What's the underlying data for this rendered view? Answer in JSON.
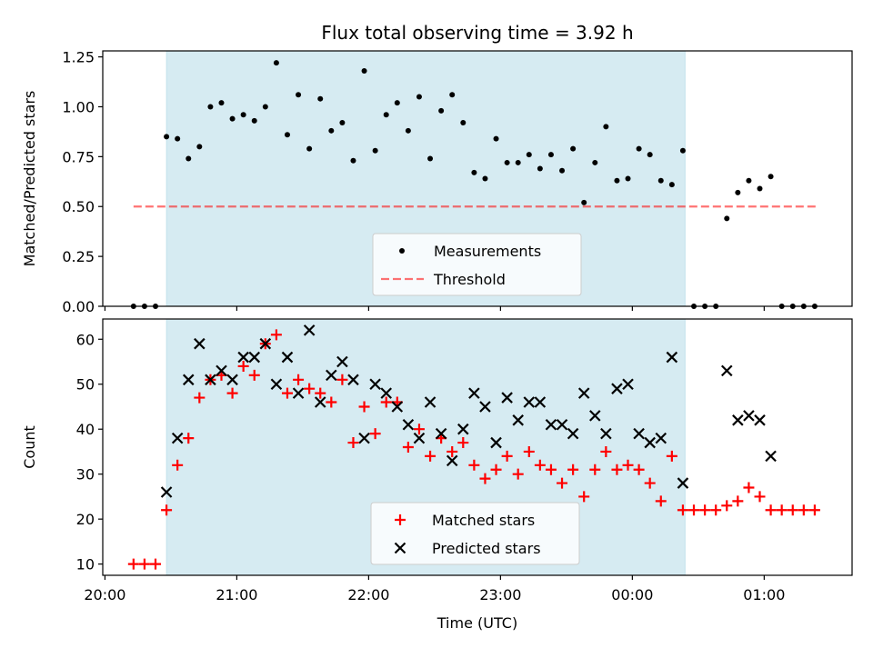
{
  "title": "Flux total observing time = 3.92 h",
  "chart_data": [
    {
      "type": "scatter",
      "ylabel": "Matched/Predicted stars",
      "xlabel": "",
      "ylim": [
        0,
        1.28
      ],
      "xlim": [
        "19:59",
        "01:40"
      ],
      "yticks": [
        0.0,
        0.25,
        0.5,
        0.75,
        1.0,
        1.25
      ],
      "ytick_labels": [
        "0.00",
        "0.25",
        "0.50",
        "0.75",
        "1.00",
        "1.25"
      ],
      "shaded_region": {
        "start": "20:28",
        "end": "00:24",
        "color": "#add8e6"
      },
      "threshold": {
        "value": 0.5,
        "from": "20:13",
        "to": "01:24",
        "color": "#ff0000"
      },
      "legend": {
        "position": "bottom-center",
        "entries": [
          "Measurements",
          "Threshold"
        ]
      },
      "series": [
        {
          "name": "Measurements",
          "marker": "dot",
          "color": "#000000",
          "x": [
            "20:13",
            "20:18",
            "20:23",
            "20:28",
            "20:33",
            "20:38",
            "20:43",
            "20:48",
            "20:53",
            "20:58",
            "21:03",
            "21:08",
            "21:13",
            "21:18",
            "21:23",
            "21:28",
            "21:33",
            "21:38",
            "21:43",
            "21:48",
            "21:53",
            "21:58",
            "22:03",
            "22:08",
            "22:13",
            "22:18",
            "22:23",
            "22:28",
            "22:33",
            "22:38",
            "22:43",
            "22:48",
            "22:53",
            "22:58",
            "23:03",
            "23:08",
            "23:13",
            "23:18",
            "23:23",
            "23:28",
            "23:33",
            "23:38",
            "23:43",
            "23:48",
            "23:53",
            "23:58",
            "00:03",
            "00:08",
            "00:13",
            "00:18",
            "00:23",
            "00:28",
            "00:33",
            "00:38",
            "00:43",
            "00:48",
            "00:53",
            "00:58",
            "01:03",
            "01:08",
            "01:13",
            "01:18",
            "01:23"
          ],
          "y": [
            0.0,
            0.0,
            0.0,
            0.85,
            0.84,
            0.74,
            0.8,
            1.0,
            1.02,
            0.94,
            0.96,
            0.93,
            1.0,
            1.22,
            0.86,
            1.06,
            0.79,
            1.04,
            0.88,
            0.92,
            0.73,
            1.18,
            0.78,
            0.96,
            1.02,
            0.88,
            1.05,
            0.74,
            0.98,
            1.06,
            0.92,
            0.67,
            0.64,
            0.84,
            0.72,
            0.72,
            0.76,
            0.69,
            0.76,
            0.68,
            0.79,
            0.52,
            0.72,
            0.9,
            0.63,
            0.64,
            0.79,
            0.76,
            0.63,
            0.61,
            0.78,
            0.0,
            0.0,
            0.0,
            0.44,
            0.57,
            0.63,
            0.59,
            0.65,
            0.0,
            0.0,
            0.0,
            0.0
          ]
        }
      ]
    },
    {
      "type": "scatter",
      "xlabel": "Time (UTC)",
      "ylabel": "Count",
      "ylim": [
        7.5,
        64.5
      ],
      "xlim": [
        "19:59",
        "01:40"
      ],
      "yticks": [
        10,
        20,
        30,
        40,
        50,
        60
      ],
      "ytick_labels": [
        "10",
        "20",
        "30",
        "40",
        "50",
        "60"
      ],
      "xticks": [
        "20:00",
        "21:00",
        "22:00",
        "23:00",
        "00:00",
        "01:00"
      ],
      "shaded_region": {
        "start": "20:28",
        "end": "00:24",
        "color": "#add8e6"
      },
      "legend": {
        "position": "bottom-center",
        "entries": [
          "Matched stars",
          "Predicted stars"
        ]
      },
      "series": [
        {
          "name": "Matched stars",
          "marker": "plus",
          "color": "#ff0000",
          "x": [
            "20:13",
            "20:18",
            "20:23",
            "20:28",
            "20:33",
            "20:38",
            "20:43",
            "20:48",
            "20:53",
            "20:58",
            "21:03",
            "21:08",
            "21:13",
            "21:18",
            "21:23",
            "21:28",
            "21:33",
            "21:38",
            "21:43",
            "21:48",
            "21:53",
            "21:58",
            "22:03",
            "22:08",
            "22:13",
            "22:18",
            "22:23",
            "22:28",
            "22:33",
            "22:38",
            "22:43",
            "22:48",
            "22:53",
            "22:58",
            "23:03",
            "23:08",
            "23:13",
            "23:18",
            "23:23",
            "23:28",
            "23:33",
            "23:38",
            "23:43",
            "23:48",
            "23:53",
            "23:58",
            "00:03",
            "00:08",
            "00:13",
            "00:18",
            "00:23",
            "00:28",
            "00:33",
            "00:38",
            "00:43",
            "00:48",
            "00:53",
            "00:58",
            "01:03",
            "01:08",
            "01:13",
            "01:18",
            "01:23"
          ],
          "y": [
            10,
            10,
            10,
            22,
            32,
            38,
            47,
            51,
            52,
            48,
            54,
            52,
            59,
            61,
            48,
            51,
            49,
            48,
            46,
            51,
            37,
            45,
            39,
            46,
            46,
            36,
            40,
            34,
            38,
            35,
            37,
            32,
            29,
            31,
            34,
            30,
            35,
            32,
            31,
            28,
            31,
            25,
            31,
            35,
            31,
            32,
            31,
            28,
            24,
            34,
            22,
            22,
            22,
            22,
            23,
            24,
            27,
            25,
            22,
            22,
            22,
            22,
            22
          ]
        },
        {
          "name": "Predicted stars",
          "marker": "x",
          "color": "#000000",
          "x": [
            "20:28",
            "20:33",
            "20:38",
            "20:43",
            "20:48",
            "20:53",
            "20:58",
            "21:03",
            "21:08",
            "21:13",
            "21:18",
            "21:23",
            "21:28",
            "21:33",
            "21:38",
            "21:43",
            "21:48",
            "21:53",
            "21:58",
            "22:03",
            "22:08",
            "22:13",
            "22:18",
            "22:23",
            "22:28",
            "22:33",
            "22:38",
            "22:43",
            "22:48",
            "22:53",
            "22:58",
            "23:03",
            "23:08",
            "23:13",
            "23:18",
            "23:23",
            "23:28",
            "23:33",
            "23:38",
            "23:43",
            "23:48",
            "23:53",
            "23:58",
            "00:03",
            "00:08",
            "00:13",
            "00:18",
            "00:23",
            "00:43",
            "00:48",
            "00:53",
            "00:58",
            "01:03"
          ],
          "y": [
            26,
            38,
            51,
            59,
            51,
            53,
            51,
            56,
            56,
            59,
            50,
            56,
            48,
            62,
            46,
            52,
            55,
            51,
            38,
            50,
            48,
            45,
            41,
            38,
            46,
            39,
            33,
            40,
            48,
            45,
            37,
            47,
            42,
            46,
            46,
            41,
            41,
            39,
            48,
            43,
            39,
            49,
            50,
            39,
            37,
            38,
            56,
            28,
            53,
            42,
            43,
            42,
            34
          ]
        }
      ]
    }
  ]
}
